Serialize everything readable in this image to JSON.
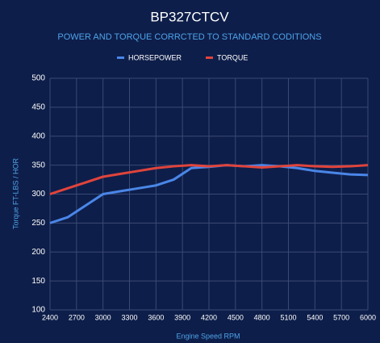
{
  "chart_data": {
    "type": "line",
    "title": "BP327CTCV",
    "subtitle": "POWER AND TORQUE CORRCTED TO STANDARD CODITIONS",
    "x_label": "Engine Speed RPM",
    "y_label": "Torque FT-LBS / HOR",
    "x": [
      2400,
      2600,
      2800,
      3000,
      3200,
      3400,
      3600,
      3800,
      4000,
      4200,
      4400,
      4600,
      4800,
      5000,
      5200,
      5400,
      5600,
      5800,
      6000
    ],
    "series": [
      {
        "name": "HORSEPOWER",
        "color": "#4a86e8",
        "values": [
          250,
          260,
          280,
          300,
          305,
          310,
          315,
          325,
          345,
          347,
          350,
          348,
          350,
          348,
          345,
          340,
          337,
          334,
          333
        ]
      },
      {
        "name": "TORQUE",
        "color": "#e0443c",
        "values": [
          300,
          310,
          320,
          330,
          335,
          340,
          345,
          348,
          350,
          348,
          350,
          348,
          346,
          348,
          350,
          348,
          347,
          348,
          350
        ]
      }
    ],
    "xlim": [
      2400,
      6000
    ],
    "xticks": [
      2400,
      2700,
      3000,
      3300,
      3600,
      3900,
      4200,
      4500,
      4800,
      5100,
      5400,
      5700,
      6000
    ],
    "ylim": [
      100,
      500
    ],
    "yticks": [
      100,
      150,
      200,
      250,
      300,
      350,
      400,
      450,
      500
    ],
    "grid": true,
    "legend": "top"
  }
}
